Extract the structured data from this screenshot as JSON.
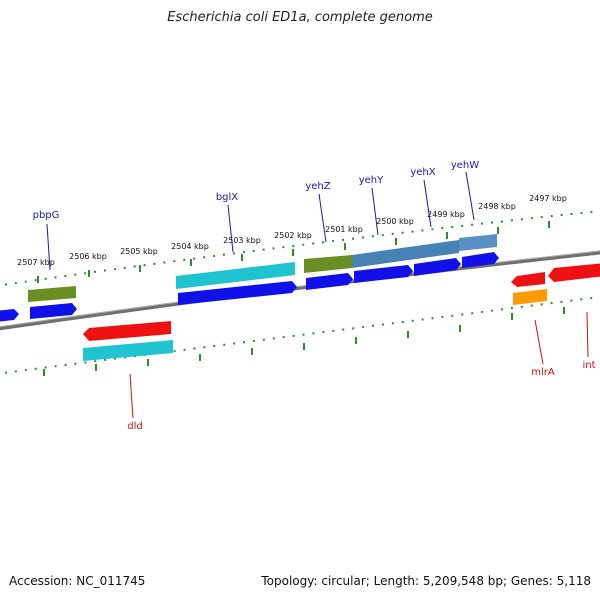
{
  "title": "Escherichia coli ED1a, complete genome",
  "footer": {
    "accession": "Accession: NC_011745",
    "summary": "Topology: circular; Length: 5,209,548 bp; Genes: 5,118"
  },
  "colors": {
    "backbone": "#808080",
    "tick": "#2e8b2e",
    "label_forward": "#1a1aa8",
    "label_reverse": "#cc1111",
    "blue": "#1010e8",
    "cyan": "#1fc4d0",
    "olive": "#6b8e23",
    "steel": "#4682b4",
    "red": "#ee1111",
    "orange": "#ff9900"
  },
  "kbp_labels": [
    "2507 kbp",
    "2506 kbp",
    "2505 kbp",
    "2504 kbp",
    "2503 kbp",
    "2502 kbp",
    "2501 kbp",
    "2500 kbp",
    "2499 kbp",
    "2498 kbp",
    "2497 kbp"
  ],
  "gene_labels_forward": [
    "pbpG",
    "bglX",
    "yehZ",
    "yehY",
    "yehX",
    "yehW"
  ],
  "gene_labels_reverse": [
    "dld",
    "mlrA",
    "int"
  ]
}
